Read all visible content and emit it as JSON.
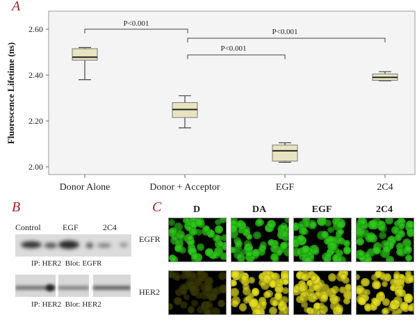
{
  "panels": {
    "A": {
      "letter": "A"
    },
    "B": {
      "letter": "B"
    },
    "C": {
      "letter": "C"
    }
  },
  "chart_data": [
    {
      "type": "box",
      "title": "",
      "xlabel": "",
      "ylabel": "Fluorescence Lifetime (ns)",
      "ylim": [
        1.96,
        2.68
      ],
      "yticks": [
        2.0,
        2.2,
        2.4,
        2.6
      ],
      "ytick_labels": [
        "2.00",
        "2.20",
        "2.40",
        "2.60"
      ],
      "grid": false,
      "categories": [
        "Donor Alone",
        "Donor + Acceptor",
        "EGF",
        "2C4"
      ],
      "boxes": [
        {
          "name": "Donor Alone",
          "whisker_low": 2.38,
          "q1": 2.465,
          "median": 2.478,
          "q3": 2.515,
          "whisker_high": 2.52
        },
        {
          "name": "Donor + Acceptor",
          "whisker_low": 2.17,
          "q1": 2.215,
          "median": 2.25,
          "q3": 2.28,
          "whisker_high": 2.31
        },
        {
          "name": "EGF",
          "whisker_low": 2.02,
          "q1": 2.025,
          "median": 2.07,
          "q3": 2.095,
          "whisker_high": 2.105
        },
        {
          "name": "2C4",
          "whisker_low": 2.375,
          "q1": 2.377,
          "median": 2.39,
          "q3": 2.405,
          "whisker_high": 2.415
        }
      ],
      "annotations": [
        {
          "text": "P<0.001",
          "from": "Donor Alone",
          "to": "Donor + Acceptor"
        },
        {
          "text": "P<0.001",
          "from": "Donor + Acceptor",
          "to": "2C4"
        },
        {
          "text": "P<0.001",
          "from": "Donor + Acceptor",
          "to": "EGF"
        }
      ],
      "box_fill": "#e8e4c0",
      "plot_bg": "#f4f4f4"
    }
  ],
  "blot": {
    "lane_labels": [
      "Control",
      "EGF",
      "2C4"
    ],
    "caption_top": "IP: HER2  Blot: EGFR",
    "caption_bottom": "IP: HER2  Blot: HER2"
  },
  "microscopy": {
    "column_labels": [
      "D",
      "DA",
      "EGF",
      "2C4"
    ],
    "row_labels": [
      "EGFR",
      "HER2"
    ],
    "colors": {
      "egfr": "#2ecc1a",
      "her2_bright": "#e6e020",
      "her2_dim": "#3a3a08"
    }
  }
}
